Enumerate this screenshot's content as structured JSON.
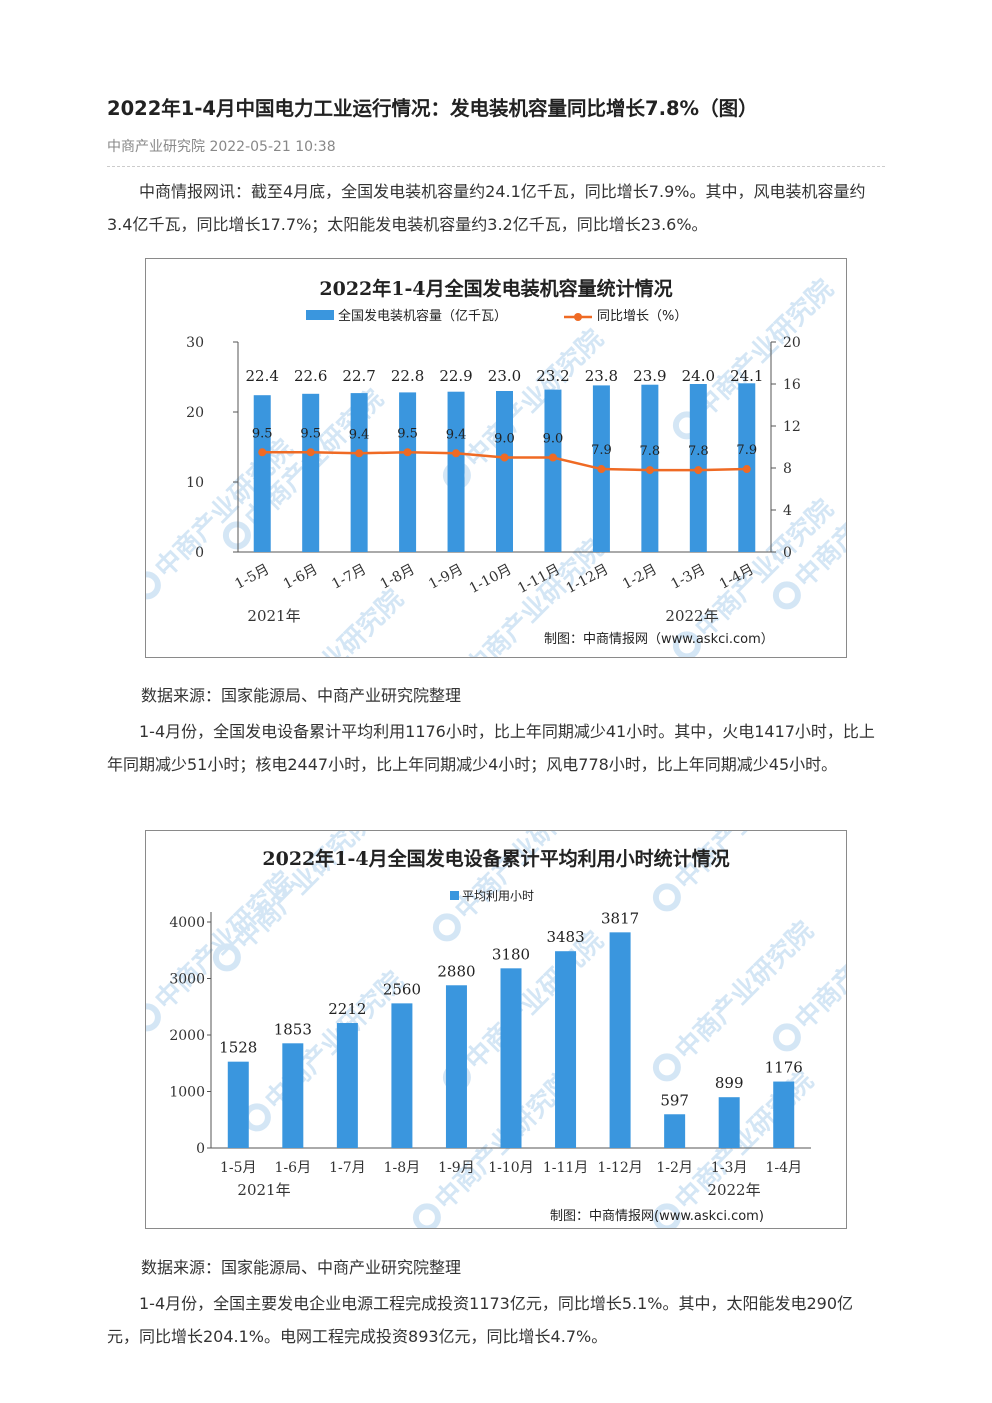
{
  "article": {
    "title": "2022年1-4月中国电力工业运行情况：发电装机容量同比增长7.8%（图）",
    "meta": "中商产业研究院 2022-05-21 10:38",
    "paragraphs": [
      "中商情报网讯：截至4月底，全国发电装机容量约24.1亿千瓦，同比增长7.9%。其中，风电装机容量约3.4亿千瓦，同比增长17.7%；太阳能发电装机容量约3.2亿千瓦，同比增长23.6%。",
      "1-4月份，全国发电设备累计平均利用1176小时，比上年同期减少41小时。其中，火电1417小时，比上年同期减少51小时；核电2447小时，比上年同期减少4小时；风电778小时，比上年同期减少45小时。",
      "1-4月份，全国主要发电企业电源工程完成投资1173亿元，同比增长5.1%。其中，太阳能发电290亿元，同比增长204.1%。电网工程完成投资893亿元，同比增长4.7%。"
    ],
    "source_1": "数据来源：国家能源局、中商产业研究院整理",
    "source_2": "数据来源：国家能源局、中商产业研究院整理"
  },
  "watermark": "中商产业研究院",
  "colors": {
    "bar": "#3a96de",
    "line": "#ef6a24"
  },
  "chart_data": [
    {
      "type": "bar",
      "title": "2022年1-4月全国发电装机容量统计情况",
      "categories": [
        "1-5月",
        "1-6月",
        "1-7月",
        "1-8月",
        "1-9月",
        "1-10月",
        "1-11月",
        "1-12月",
        "1-2月",
        "1-3月",
        "1-4月"
      ],
      "series": [
        {
          "name": "全国发电装机容量（亿千瓦）",
          "type": "bar",
          "axis": "left",
          "values": [
            22.4,
            22.6,
            22.7,
            22.8,
            22.9,
            23.0,
            23.2,
            23.8,
            23.9,
            24.0,
            24.1
          ]
        },
        {
          "name": "同比增长（%）",
          "type": "line",
          "axis": "right",
          "values": [
            9.5,
            9.5,
            9.4,
            9.5,
            9.4,
            9.0,
            9.0,
            7.9,
            7.8,
            7.8,
            7.9
          ]
        }
      ],
      "ylim_left": [
        0,
        30
      ],
      "yticks_left": [
        "0",
        "10",
        "20",
        "30"
      ],
      "ylim_right": [
        0,
        20
      ],
      "yticks_right": [
        "0",
        "4",
        "8",
        "12",
        "16",
        "20"
      ],
      "year_labels": [
        "2021年",
        "2022年"
      ],
      "credit": "制图：中商情报网（www.askci.com）",
      "legend": "top-center"
    },
    {
      "type": "bar",
      "title": "2022年1-4月全国发电设备累计平均利用小时统计情况",
      "categories": [
        "1-5月",
        "1-6月",
        "1-7月",
        "1-8月",
        "1-9月",
        "1-10月",
        "1-11月",
        "1-12月",
        "1-2月",
        "1-3月",
        "1-4月"
      ],
      "series": [
        {
          "name": "平均利用小时",
          "values": [
            1528,
            1853,
            2212,
            2560,
            2880,
            3180,
            3483,
            3817,
            597,
            899,
            1176
          ]
        }
      ],
      "ylim": [
        0,
        4000
      ],
      "yticks": [
        "0",
        "1000",
        "2000",
        "3000",
        "4000"
      ],
      "year_labels": [
        "2021年",
        "2022年"
      ],
      "credit": "制图：中商情报网(www.askci.com)",
      "legend": "top-center"
    }
  ]
}
